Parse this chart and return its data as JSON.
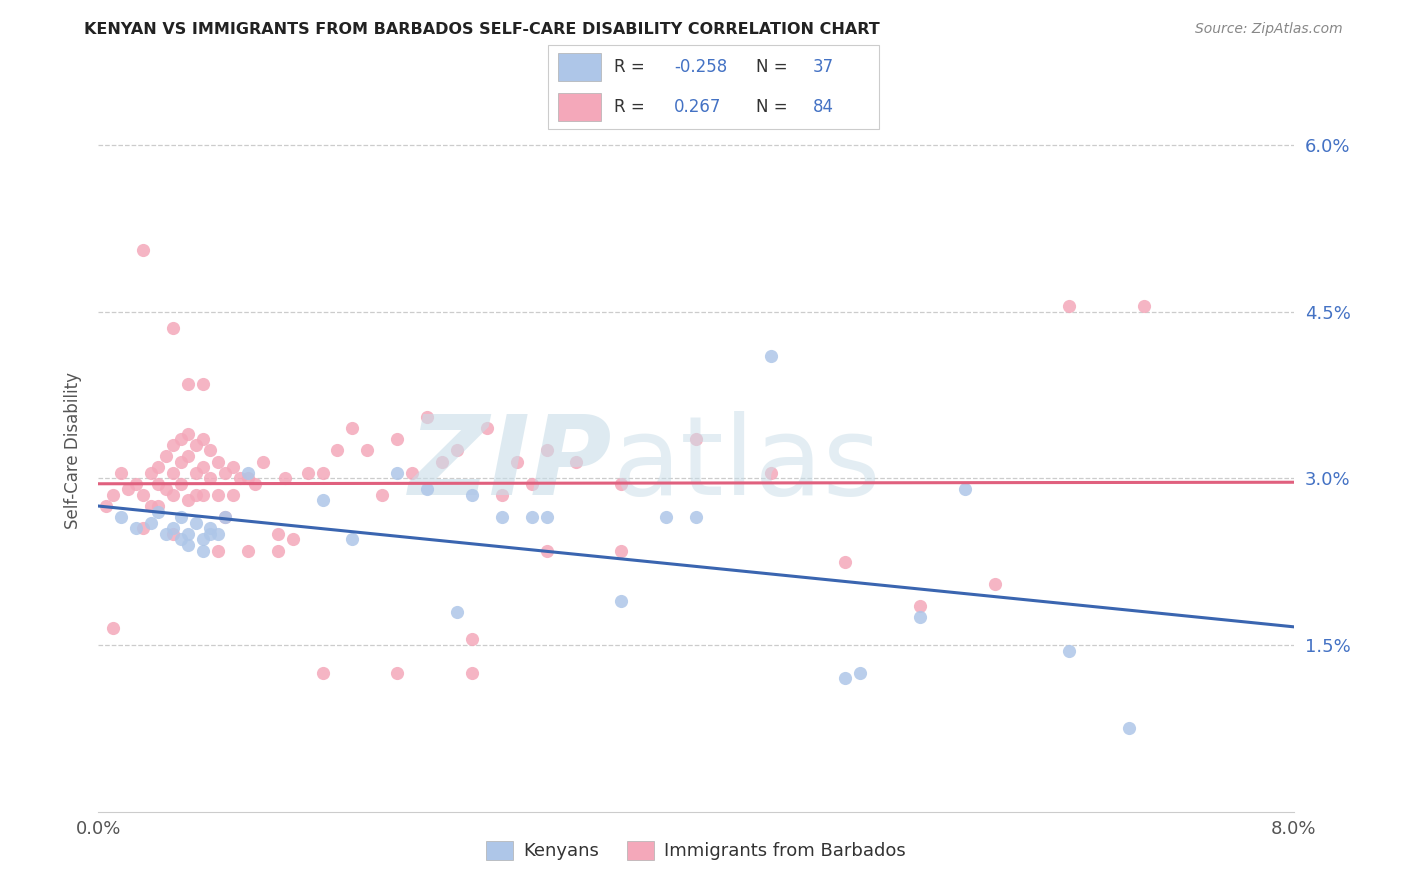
{
  "title": "KENYAN VS IMMIGRANTS FROM BARBADOS SELF-CARE DISABILITY CORRELATION CHART",
  "source": "Source: ZipAtlas.com",
  "ylabel": "Self-Care Disability",
  "ytick_values": [
    1.5,
    3.0,
    4.5,
    6.0
  ],
  "ytick_labels": [
    "1.5%",
    "3.0%",
    "4.5%",
    "6.0%"
  ],
  "xlim": [
    0.0,
    8.0
  ],
  "ylim": [
    0.0,
    6.5
  ],
  "blue_color": "#aec6e8",
  "pink_color": "#f4a8ba",
  "blue_line_color": "#3a65b0",
  "pink_line_color": "#e0607e",
  "title_color": "#222222",
  "source_color": "#888888",
  "axis_color": "#555555",
  "grid_color": "#cccccc",
  "right_tick_color": "#4472c4",
  "kenyans_x": [
    0.15,
    0.25,
    0.35,
    0.4,
    0.45,
    0.5,
    0.55,
    0.55,
    0.6,
    0.6,
    0.65,
    0.7,
    0.7,
    0.75,
    0.75,
    0.8,
    0.85,
    1.0,
    1.5,
    1.7,
    2.0,
    2.2,
    2.4,
    2.5,
    2.7,
    2.9,
    3.0,
    3.5,
    3.8,
    4.0,
    4.5,
    5.1,
    5.5,
    5.8,
    6.5,
    6.9,
    5.0
  ],
  "kenyans_y": [
    2.65,
    2.55,
    2.6,
    2.7,
    2.5,
    2.55,
    2.45,
    2.65,
    2.5,
    2.4,
    2.6,
    2.45,
    2.35,
    2.55,
    2.5,
    2.5,
    2.65,
    3.05,
    2.8,
    2.45,
    3.05,
    2.9,
    1.8,
    2.85,
    2.65,
    2.65,
    2.65,
    1.9,
    2.65,
    2.65,
    4.1,
    1.25,
    1.75,
    2.9,
    1.45,
    0.75,
    1.2
  ],
  "barbados_x": [
    0.05,
    0.1,
    0.1,
    0.15,
    0.2,
    0.25,
    0.3,
    0.3,
    0.35,
    0.35,
    0.4,
    0.4,
    0.4,
    0.45,
    0.45,
    0.5,
    0.5,
    0.5,
    0.5,
    0.55,
    0.55,
    0.55,
    0.6,
    0.6,
    0.6,
    0.65,
    0.65,
    0.65,
    0.7,
    0.7,
    0.7,
    0.75,
    0.75,
    0.8,
    0.8,
    0.85,
    0.85,
    0.9,
    0.9,
    0.95,
    1.0,
    1.05,
    1.1,
    1.2,
    1.25,
    1.3,
    1.4,
    1.5,
    1.6,
    1.7,
    1.8,
    1.9,
    2.0,
    2.1,
    2.2,
    2.3,
    2.4,
    2.5,
    2.6,
    2.7,
    2.8,
    2.9,
    3.0,
    3.2,
    3.5,
    4.0,
    4.5,
    5.0,
    5.5,
    6.0,
    6.5,
    7.0,
    0.3,
    0.5,
    0.6,
    0.7,
    0.8,
    1.0,
    1.2,
    1.5,
    2.0,
    2.5,
    3.0,
    3.5
  ],
  "barbados_y": [
    2.75,
    2.85,
    1.65,
    3.05,
    2.9,
    2.95,
    2.85,
    2.55,
    3.05,
    2.75,
    3.1,
    2.95,
    2.75,
    3.2,
    2.9,
    3.3,
    3.05,
    2.85,
    2.5,
    3.35,
    3.15,
    2.95,
    3.4,
    3.2,
    2.8,
    3.3,
    3.05,
    2.85,
    3.35,
    3.1,
    2.85,
    3.25,
    3.0,
    3.15,
    2.85,
    3.05,
    2.65,
    3.1,
    2.85,
    3.0,
    3.0,
    2.95,
    3.15,
    2.5,
    3.0,
    2.45,
    3.05,
    3.05,
    3.25,
    3.45,
    3.25,
    2.85,
    3.35,
    3.05,
    3.55,
    3.15,
    3.25,
    1.55,
    3.45,
    2.85,
    3.15,
    2.95,
    3.25,
    3.15,
    2.95,
    3.35,
    3.05,
    2.25,
    1.85,
    2.05,
    4.55,
    4.55,
    5.05,
    4.35,
    3.85,
    3.85,
    2.35,
    2.35,
    2.35,
    1.25,
    1.25,
    1.25,
    2.35,
    2.35
  ]
}
